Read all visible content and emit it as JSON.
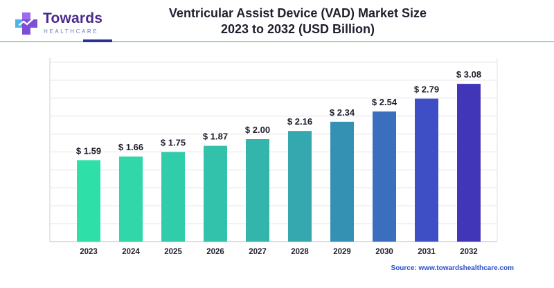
{
  "brand": {
    "name": "Towards",
    "tagline": "HEALTHCARE",
    "logo_color": "#4b2a8e",
    "logo_icon": "medical-cross-icon"
  },
  "chart_data": {
    "type": "bar",
    "title": "Ventricular Assist Device (VAD) Market Size",
    "subtitle": "2023 to 2032 (USD Billion)",
    "xlabel": "",
    "ylabel": "",
    "categories": [
      "2023",
      "2024",
      "2025",
      "2026",
      "2027",
      "2028",
      "2029",
      "2030",
      "2031",
      "2032"
    ],
    "values": [
      1.59,
      1.66,
      1.75,
      1.87,
      2.0,
      2.16,
      2.34,
      2.54,
      2.79,
      3.08
    ],
    "data_labels": [
      "$ 1.59",
      "$ 1.66",
      "$ 1.75",
      "$ 1.87",
      "$ 2.00",
      "$ 2.16",
      "$ 2.34",
      "$ 2.54",
      "$ 2.79",
      "$ 3.08"
    ],
    "ylim": [
      0,
      3.5
    ],
    "grid": true,
    "y_tick_labels_visible": false,
    "bar_colors": [
      "#2ee0a8",
      "#2fd7a9",
      "#31cca9",
      "#32c1aa",
      "#33b5ab",
      "#34a8ae",
      "#3591b4",
      "#3a6fbe",
      "#3e4ec4",
      "#4236b8"
    ]
  },
  "source": "Source: www.towardshealthcare.com"
}
